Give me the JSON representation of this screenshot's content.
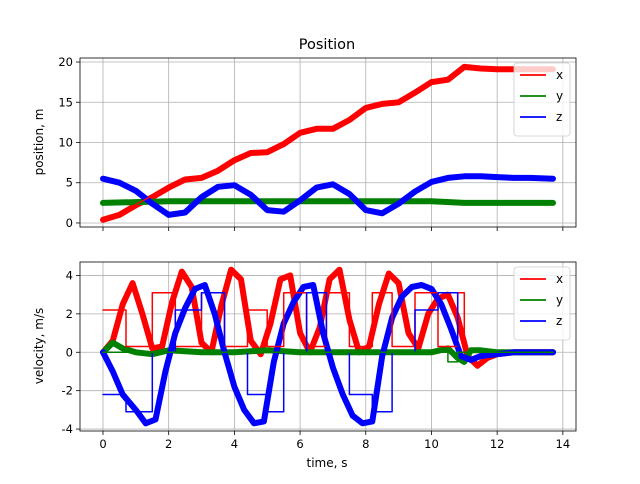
{
  "figure": {
    "title": "Position"
  },
  "chart_data": [
    {
      "type": "line",
      "title": "Position",
      "xlabel": "",
      "ylabel": "position, m",
      "xlim": [
        -0.7,
        14.4
      ],
      "ylim": [
        -0.5,
        20.5
      ],
      "xticks": [
        0,
        2,
        4,
        6,
        8,
        10,
        12,
        14
      ],
      "yticks": [
        0,
        5,
        10,
        15,
        20
      ],
      "grid": true,
      "legend": "top-right",
      "series": [
        {
          "name": "x",
          "color": "#ff0000",
          "style": "thick",
          "x": [
            0,
            0.5,
            1.0,
            1.5,
            2.0,
            2.5,
            3.0,
            3.5,
            4.0,
            4.5,
            5.0,
            5.5,
            6.0,
            6.5,
            7.0,
            7.5,
            8.0,
            8.5,
            9.0,
            9.5,
            10.0,
            10.5,
            11.0,
            11.5,
            12.0,
            12.5,
            13.0,
            13.7
          ],
          "y": [
            0.4,
            1.0,
            2.2,
            3.2,
            4.4,
            5.4,
            5.6,
            6.5,
            7.8,
            8.7,
            8.8,
            9.8,
            11.2,
            11.7,
            11.7,
            12.8,
            14.3,
            14.8,
            15.0,
            16.2,
            17.5,
            17.8,
            19.4,
            19.2,
            19.1,
            19.1,
            19.1,
            19.1
          ]
        },
        {
          "name": "y",
          "color": "#008000",
          "style": "thick",
          "x": [
            0,
            1,
            2,
            3,
            4,
            5,
            6,
            7,
            8,
            9,
            10,
            11,
            12,
            13,
            13.7
          ],
          "y": [
            2.5,
            2.6,
            2.7,
            2.7,
            2.7,
            2.7,
            2.7,
            2.7,
            2.7,
            2.7,
            2.7,
            2.5,
            2.5,
            2.5,
            2.5
          ]
        },
        {
          "name": "z",
          "color": "#0000ff",
          "style": "thick",
          "x": [
            0,
            0.5,
            1.0,
            1.5,
            2.0,
            2.5,
            3.0,
            3.5,
            4.0,
            4.5,
            5.0,
            5.5,
            6.0,
            6.5,
            7.0,
            7.5,
            8.0,
            8.5,
            9.0,
            9.5,
            10.0,
            10.5,
            11.0,
            11.5,
            12.0,
            12.5,
            13.0,
            13.7
          ],
          "y": [
            5.5,
            5.0,
            4.0,
            2.4,
            1.0,
            1.3,
            3.2,
            4.5,
            4.7,
            3.5,
            1.6,
            1.4,
            2.8,
            4.4,
            4.8,
            3.6,
            1.6,
            1.2,
            2.4,
            3.9,
            5.1,
            5.6,
            5.8,
            5.8,
            5.7,
            5.6,
            5.6,
            5.5
          ]
        },
        {
          "name": "",
          "color": "#ff0000",
          "style": "thin",
          "x": [
            0,
            0.5,
            1.0,
            1.5,
            2.0,
            2.5,
            3.0,
            3.5,
            4.0,
            4.5,
            5.0,
            5.5,
            6.0,
            6.5,
            7.0,
            7.5,
            8.0,
            8.5,
            9.0,
            9.5,
            10.0,
            10.5,
            11.0,
            11.5,
            12.0,
            13.7
          ],
          "y": [
            0.5,
            1.2,
            2.3,
            3.4,
            4.5,
            5.3,
            5.5,
            6.6,
            7.8,
            8.6,
            8.7,
            9.9,
            11.2,
            11.6,
            11.7,
            12.9,
            14.2,
            14.7,
            14.9,
            16.1,
            17.4,
            17.9,
            19.3,
            19.2,
            19.0,
            19.0
          ]
        }
      ]
    },
    {
      "type": "line",
      "title": "",
      "xlabel": "time, s",
      "ylabel": "velocity, m/s",
      "xlim": [
        -0.7,
        14.4
      ],
      "ylim": [
        -4.1,
        4.7
      ],
      "xticks": [
        0,
        2,
        4,
        6,
        8,
        10,
        12,
        14
      ],
      "yticks": [
        -4,
        -2,
        0,
        2,
        4
      ],
      "grid": true,
      "legend": "top-right",
      "series": [
        {
          "name": "x",
          "color": "#ff0000",
          "style": "thick",
          "x": [
            0,
            0.3,
            0.6,
            0.9,
            1.2,
            1.5,
            1.8,
            2.1,
            2.4,
            2.7,
            3.0,
            3.3,
            3.6,
            3.9,
            4.2,
            4.5,
            4.8,
            5.1,
            5.4,
            5.7,
            6.0,
            6.3,
            6.6,
            6.9,
            7.2,
            7.5,
            7.8,
            8.1,
            8.4,
            8.7,
            9.0,
            9.3,
            9.6,
            9.9,
            10.2,
            10.5,
            10.8,
            11.1,
            11.4,
            11.7,
            12.0,
            12.5,
            13.0,
            13.7
          ],
          "y": [
            0.0,
            0.6,
            2.5,
            3.6,
            2.0,
            0.2,
            0.3,
            2.6,
            4.2,
            3.4,
            0.5,
            0.0,
            2.4,
            4.3,
            3.8,
            0.6,
            -0.1,
            1.5,
            3.8,
            4.0,
            1.0,
            0.0,
            1.3,
            3.8,
            4.3,
            1.7,
            0.0,
            0.3,
            2.5,
            4.1,
            3.6,
            1.0,
            0.2,
            2.0,
            2.8,
            3.0,
            1.8,
            -0.2,
            -0.7,
            -0.3,
            -0.1,
            0.0,
            0.0,
            0.0
          ]
        },
        {
          "name": "y",
          "color": "#008000",
          "style": "thick",
          "x": [
            0,
            0.3,
            0.6,
            1.0,
            1.5,
            2.0,
            3.0,
            4.0,
            5.0,
            6.0,
            7.0,
            8.0,
            9.0,
            10.0,
            10.5,
            10.8,
            11.0,
            11.2,
            11.5,
            12.0,
            13.0,
            13.7
          ],
          "y": [
            0.0,
            0.5,
            0.2,
            0.0,
            -0.1,
            0.1,
            0.0,
            0.0,
            0.1,
            0.0,
            0.0,
            0.0,
            0.0,
            0.0,
            0.2,
            -0.3,
            -0.5,
            0.1,
            0.1,
            0.0,
            0.0,
            0.0
          ]
        },
        {
          "name": "z",
          "color": "#0000ff",
          "style": "thick",
          "x": [
            0,
            0.3,
            0.6,
            1.0,
            1.3,
            1.6,
            1.9,
            2.2,
            2.5,
            2.8,
            3.1,
            3.4,
            3.7,
            4.0,
            4.3,
            4.6,
            4.9,
            5.2,
            5.5,
            5.8,
            6.1,
            6.4,
            6.7,
            7.0,
            7.3,
            7.6,
            7.9,
            8.2,
            8.5,
            8.8,
            9.1,
            9.4,
            9.7,
            10.0,
            10.3,
            10.6,
            10.9,
            11.2,
            11.5,
            12.0,
            12.5,
            13.0,
            13.7
          ],
          "y": [
            0.0,
            -1.0,
            -2.2,
            -3.0,
            -3.7,
            -3.5,
            -1.0,
            1.0,
            2.3,
            3.3,
            3.5,
            2.0,
            0.0,
            -1.8,
            -3.0,
            -3.7,
            -3.6,
            -0.5,
            1.5,
            2.6,
            3.4,
            3.5,
            1.0,
            -0.8,
            -2.2,
            -3.3,
            -3.7,
            -3.6,
            -0.2,
            1.8,
            2.9,
            3.4,
            3.5,
            3.3,
            2.5,
            1.2,
            -0.2,
            -0.4,
            -0.2,
            -0.1,
            0.0,
            0.0,
            0.0
          ]
        },
        {
          "name": "",
          "color": "#ff0000",
          "style": "step",
          "x": [
            0,
            0.7,
            0.7,
            1.5,
            1.5,
            2.2,
            2.2,
            3.0,
            3.0,
            3.7,
            3.7,
            4.4,
            4.4,
            5.0,
            5.0,
            5.5,
            5.5,
            6.2,
            6.2,
            6.8,
            6.8,
            7.5,
            7.5,
            8.2,
            8.2,
            8.8,
            8.8,
            9.5,
            9.5,
            10.2,
            10.2,
            10.8,
            10.8,
            11.0,
            11.0,
            13.7
          ],
          "y": [
            2.2,
            2.2,
            0.3,
            0.3,
            3.1,
            3.1,
            0.3,
            0.3,
            3.1,
            3.1,
            0.3,
            0.3,
            2.2,
            2.2,
            0.3,
            0.3,
            3.1,
            3.1,
            0.3,
            0.3,
            3.1,
            3.1,
            0.3,
            0.3,
            3.1,
            3.1,
            0.3,
            0.3,
            3.1,
            3.1,
            0.3,
            0.3,
            3.1,
            3.1,
            0.0,
            0.0
          ]
        },
        {
          "name": "",
          "color": "#0000ff",
          "style": "step",
          "x": [
            0,
            0.7,
            0.7,
            1.5,
            1.5,
            2.2,
            2.2,
            3.0,
            3.0,
            3.7,
            3.7,
            4.4,
            4.4,
            5.0,
            5.0,
            5.5,
            5.5,
            6.2,
            6.2,
            6.8,
            6.8,
            7.5,
            7.5,
            8.2,
            8.2,
            8.8,
            8.8,
            9.5,
            9.5,
            10.2,
            10.2,
            10.8,
            10.8,
            13.7
          ],
          "y": [
            -2.2,
            -2.2,
            -3.1,
            -3.1,
            0.0,
            0.0,
            2.2,
            2.2,
            3.1,
            3.1,
            0.0,
            0.0,
            -2.2,
            -2.2,
            -3.1,
            -3.1,
            0.0,
            0.0,
            3.1,
            3.1,
            0.0,
            0.0,
            -2.2,
            -2.2,
            -3.1,
            -3.1,
            0.0,
            0.0,
            2.2,
            2.2,
            3.1,
            3.1,
            0.0,
            0.0
          ]
        },
        {
          "name": "",
          "color": "#008000",
          "style": "step",
          "x": [
            0,
            10.5,
            10.5,
            10.8,
            10.8,
            13.7
          ],
          "y": [
            0.0,
            0.0,
            -0.5,
            -0.5,
            0.0,
            0.0
          ]
        }
      ]
    }
  ]
}
